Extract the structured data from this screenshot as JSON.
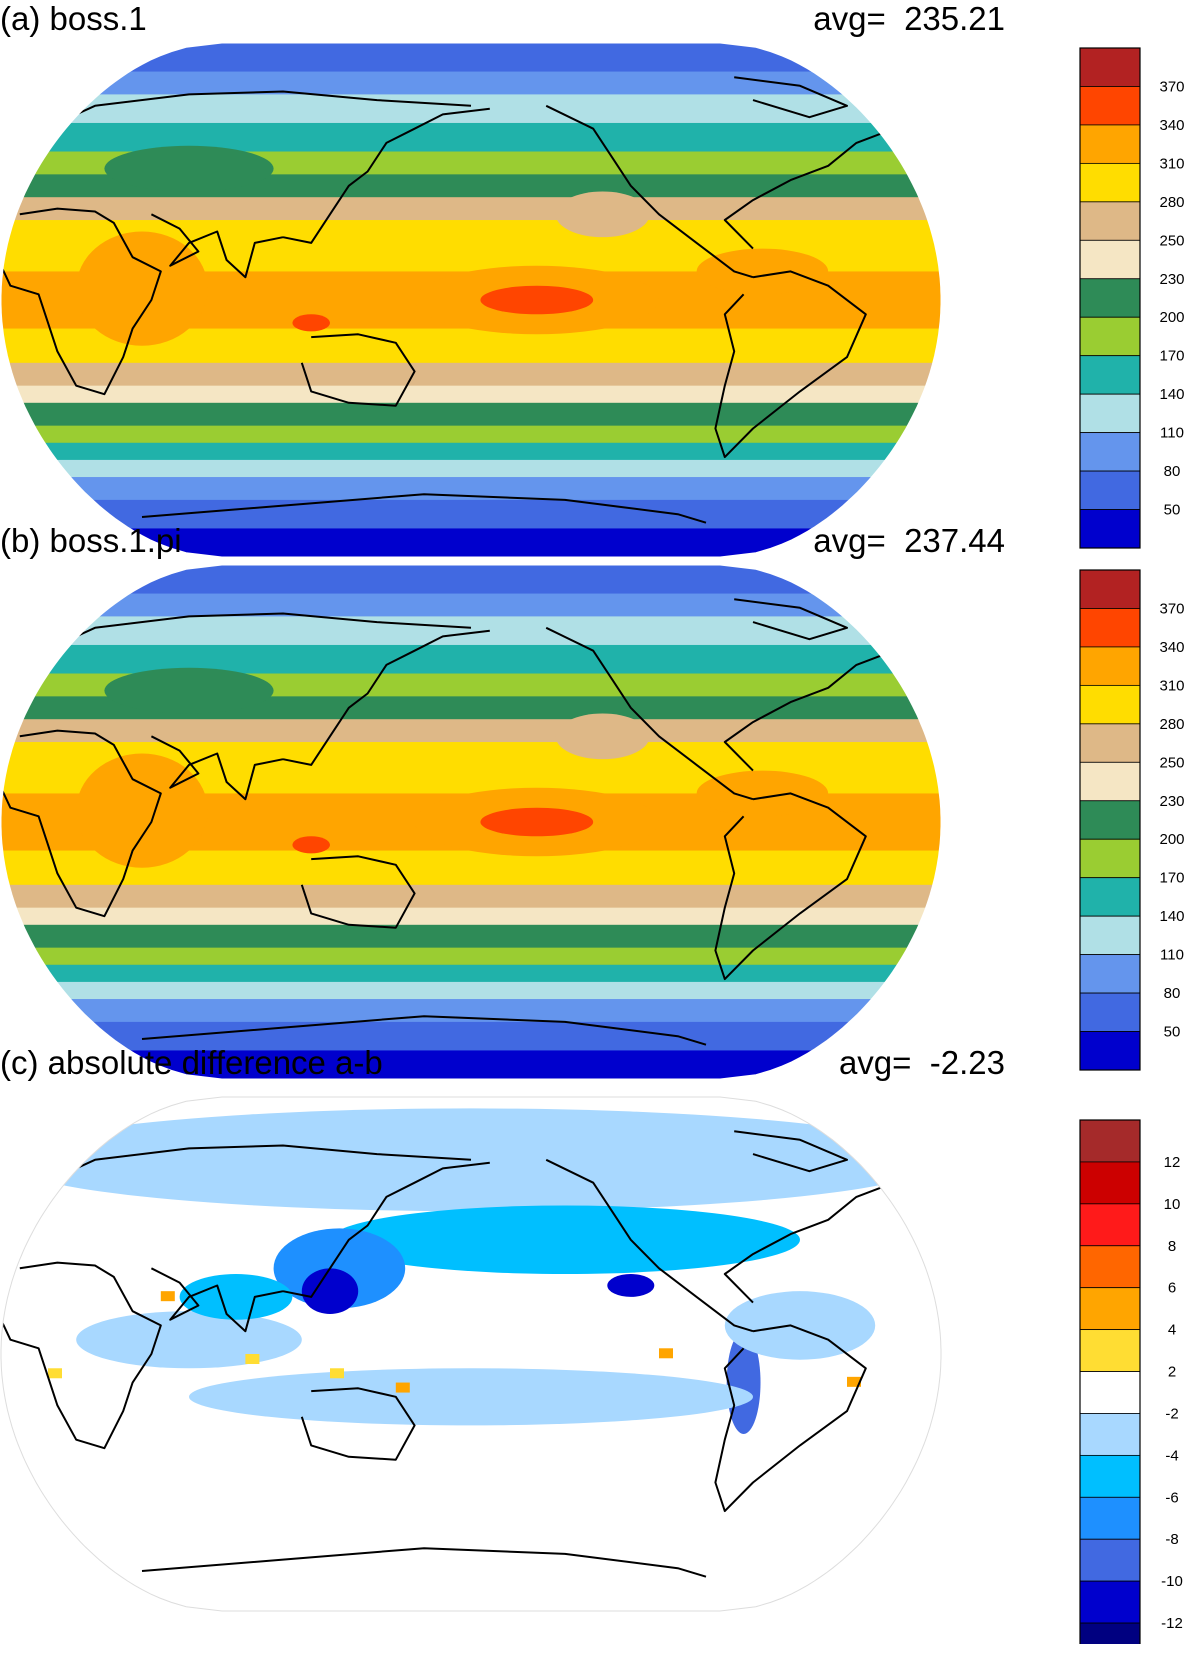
{
  "panels": [
    {
      "id": "a",
      "title": "(a) boss.1",
      "avg_label": "avg=",
      "avg_value": "235.21"
    },
    {
      "id": "b",
      "title": "(b) boss.1.pi",
      "avg_label": "avg=",
      "avg_value": "237.44"
    },
    {
      "id": "c",
      "title": "(c) absolute difference a-b",
      "avg_label": "avg=",
      "avg_value": "-2.23"
    }
  ],
  "chart_data": [
    {
      "type": "heatmap",
      "title": "(a) boss.1",
      "subtitle": "avg=  235.21",
      "projection": "robinson",
      "colorbar": {
        "levels": [
          "370",
          "340",
          "310",
          "280",
          "250",
          "230",
          "200",
          "170",
          "140",
          "110",
          "80",
          "50"
        ],
        "colors": [
          "#b22222",
          "#ff4500",
          "#ffa500",
          "#ffdd00",
          "#deb887",
          "#f5e6c4",
          "#2e8b57",
          "#9acd32",
          "#20b2aa",
          "#b0e0e6",
          "#6495ed",
          "#4169e1",
          "#0000cd"
        ]
      }
    },
    {
      "type": "heatmap",
      "title": "(b) boss.1.pi",
      "subtitle": "avg=  237.44",
      "projection": "robinson",
      "colorbar": {
        "levels": [
          "370",
          "340",
          "310",
          "280",
          "250",
          "230",
          "200",
          "170",
          "140",
          "110",
          "80",
          "50"
        ],
        "colors": [
          "#b22222",
          "#ff4500",
          "#ffa500",
          "#ffdd00",
          "#deb887",
          "#f5e6c4",
          "#2e8b57",
          "#9acd32",
          "#20b2aa",
          "#b0e0e6",
          "#6495ed",
          "#4169e1",
          "#0000cd"
        ]
      }
    },
    {
      "type": "heatmap",
      "title": "(c) absolute difference a-b",
      "subtitle": "avg=  -2.23",
      "projection": "robinson",
      "colorbar": {
        "levels": [
          "12",
          "10",
          "8",
          "6",
          "4",
          "2",
          "-2",
          "-4",
          "-6",
          "-8",
          "-10",
          "-12"
        ],
        "colors": [
          "#a52a2a",
          "#cc0000",
          "#ff1a1a",
          "#ff6600",
          "#ffa500",
          "#ffdd33",
          "#ffffff",
          "#a8d8ff",
          "#00bfff",
          "#1e90ff",
          "#4169e1",
          "#0000cd",
          "#000080"
        ]
      }
    }
  ]
}
